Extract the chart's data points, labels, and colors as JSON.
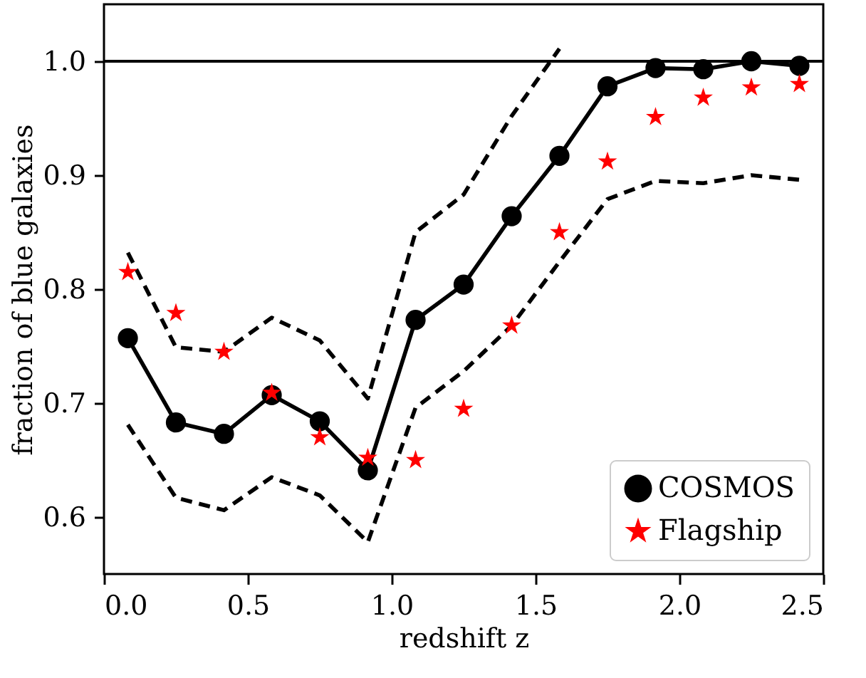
{
  "chart_data": {
    "type": "line",
    "xlabel": "redshift z",
    "ylabel": "fraction of blue galaxies",
    "x": [
      0.083,
      0.25,
      0.417,
      0.583,
      0.75,
      0.917,
      1.083,
      1.25,
      1.417,
      1.583,
      1.75,
      1.917,
      2.083,
      2.25,
      2.417
    ],
    "series": [
      {
        "name": "COSMOS",
        "marker": "circle",
        "line_style": "solid",
        "color": "#000000",
        "values": [
          0.757,
          0.683,
          0.673,
          0.707,
          0.684,
          0.641,
          0.773,
          0.804,
          0.864,
          0.917,
          0.978,
          0.994,
          0.993,
          1.0,
          0.996
        ]
      },
      {
        "type": "line",
        "marker": "none",
        "line_style": "dashed",
        "color": "#000000",
        "values": [
          0.681,
          0.617,
          0.606,
          0.635,
          0.619,
          0.578,
          0.696,
          0.728,
          0.768,
          0.824,
          0.879,
          0.895,
          0.893,
          0.9,
          0.896
        ]
      },
      {
        "type": "line",
        "marker": "none",
        "line_style": "dashed",
        "color": "#000000",
        "values": [
          0.832,
          0.749,
          0.745,
          0.775,
          0.755,
          0.704,
          0.85,
          0.883,
          0.952,
          1.011,
          null,
          null,
          null,
          null,
          null
        ]
      },
      {
        "name": "Flagship",
        "type": "scatter",
        "marker": "star",
        "color": "#ff0000",
        "values": [
          0.815,
          0.779,
          0.745,
          0.709,
          0.67,
          0.652,
          0.65,
          0.695,
          0.768,
          0.85,
          0.912,
          0.951,
          0.968,
          0.977,
          0.98
        ]
      }
    ],
    "ref_lines": [
      {
        "axis": "y",
        "value": 1.0,
        "color": "#000000"
      }
    ],
    "xlim": [
      0,
      2.5
    ],
    "xticks": [
      {
        "value": 0,
        "label": "0.0"
      },
      0.5,
      {
        "value": 1,
        "label": "1.0"
      },
      1.5,
      {
        "value": 2,
        "label": "2.0"
      },
      2.5
    ],
    "ylim": [
      0.55,
      1.05
    ],
    "yticks": [
      0.6,
      0.7,
      0.8,
      0.9,
      {
        "value": 1,
        "label": "1.0"
      }
    ],
    "grid": false,
    "legend": "bottom right"
  }
}
